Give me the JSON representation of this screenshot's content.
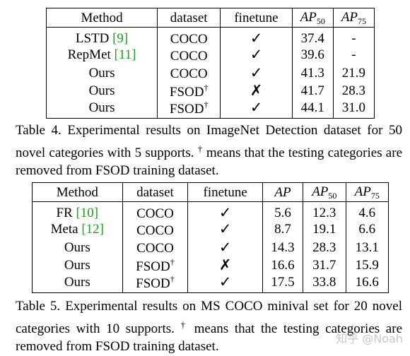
{
  "table4": {
    "headers": [
      "Method",
      "dataset",
      "finetune",
      "AP",
      "50",
      "AP",
      "75"
    ],
    "rows": [
      {
        "method": "LSTD ",
        "cite": "[9]",
        "dataset": "COCO",
        "dagger": "",
        "finetune": "✓",
        "ap50": "37.4",
        "ap75": "-"
      },
      {
        "method": "RepMet ",
        "cite": "[11]",
        "dataset": "COCO",
        "dagger": "",
        "finetune": "✓",
        "ap50": "39.6",
        "ap75": "-"
      },
      {
        "method": "Ours",
        "cite": "",
        "dataset": "COCO",
        "dagger": "",
        "finetune": "✓",
        "ap50": "41.3",
        "ap75": "21.9"
      },
      {
        "method": "Ours",
        "cite": "",
        "dataset": "FSOD",
        "dagger": "†",
        "finetune": "✗",
        "ap50": "41.7",
        "ap75": "28.3"
      },
      {
        "method": "Ours",
        "cite": "",
        "dataset": "FSOD",
        "dagger": "†",
        "finetune": "✓",
        "ap50": "44.1",
        "ap75": "31.0"
      }
    ],
    "caption_pre": "Table 4. Experimental results on ImageNet Detection dataset for 50 novel categories with 5 supports. ",
    "caption_dagger": "†",
    "caption_post": " means that the testing categories are removed from FSOD training dataset."
  },
  "table5": {
    "headers": [
      "Method",
      "dataset",
      "finetune",
      "AP",
      "AP",
      "50",
      "AP",
      "75"
    ],
    "rows": [
      {
        "method": "FR ",
        "cite": "[10]",
        "dataset": "COCO",
        "dagger": "",
        "finetune": "✓",
        "ap": "5.6",
        "ap50": "12.3",
        "ap75": "4.6"
      },
      {
        "method": "Meta ",
        "cite": "[12]",
        "dataset": "COCO",
        "dagger": "",
        "finetune": "✓",
        "ap": "8.7",
        "ap50": "19.1",
        "ap75": "6.6"
      },
      {
        "method": "Ours",
        "cite": "",
        "dataset": "COCO",
        "dagger": "",
        "finetune": "✓",
        "ap": "14.3",
        "ap50": "28.3",
        "ap75": "13.1"
      },
      {
        "method": "Ours",
        "cite": "",
        "dataset": "FSOD",
        "dagger": "†",
        "finetune": "✗",
        "ap": "16.6",
        "ap50": "31.7",
        "ap75": "15.9"
      },
      {
        "method": "Ours",
        "cite": "",
        "dataset": "FSOD",
        "dagger": "†",
        "finetune": "✓",
        "ap": "17.5",
        "ap50": "33.8",
        "ap75": "16.6"
      }
    ],
    "caption_pre": "Table 5. Experimental results on MS COCO minival set for 20 novel categories with 10 supports. ",
    "caption_dagger": "†",
    "caption_post": " means that the testing categories are removed from FSOD training dataset."
  },
  "watermark": "知乎 @Noah"
}
